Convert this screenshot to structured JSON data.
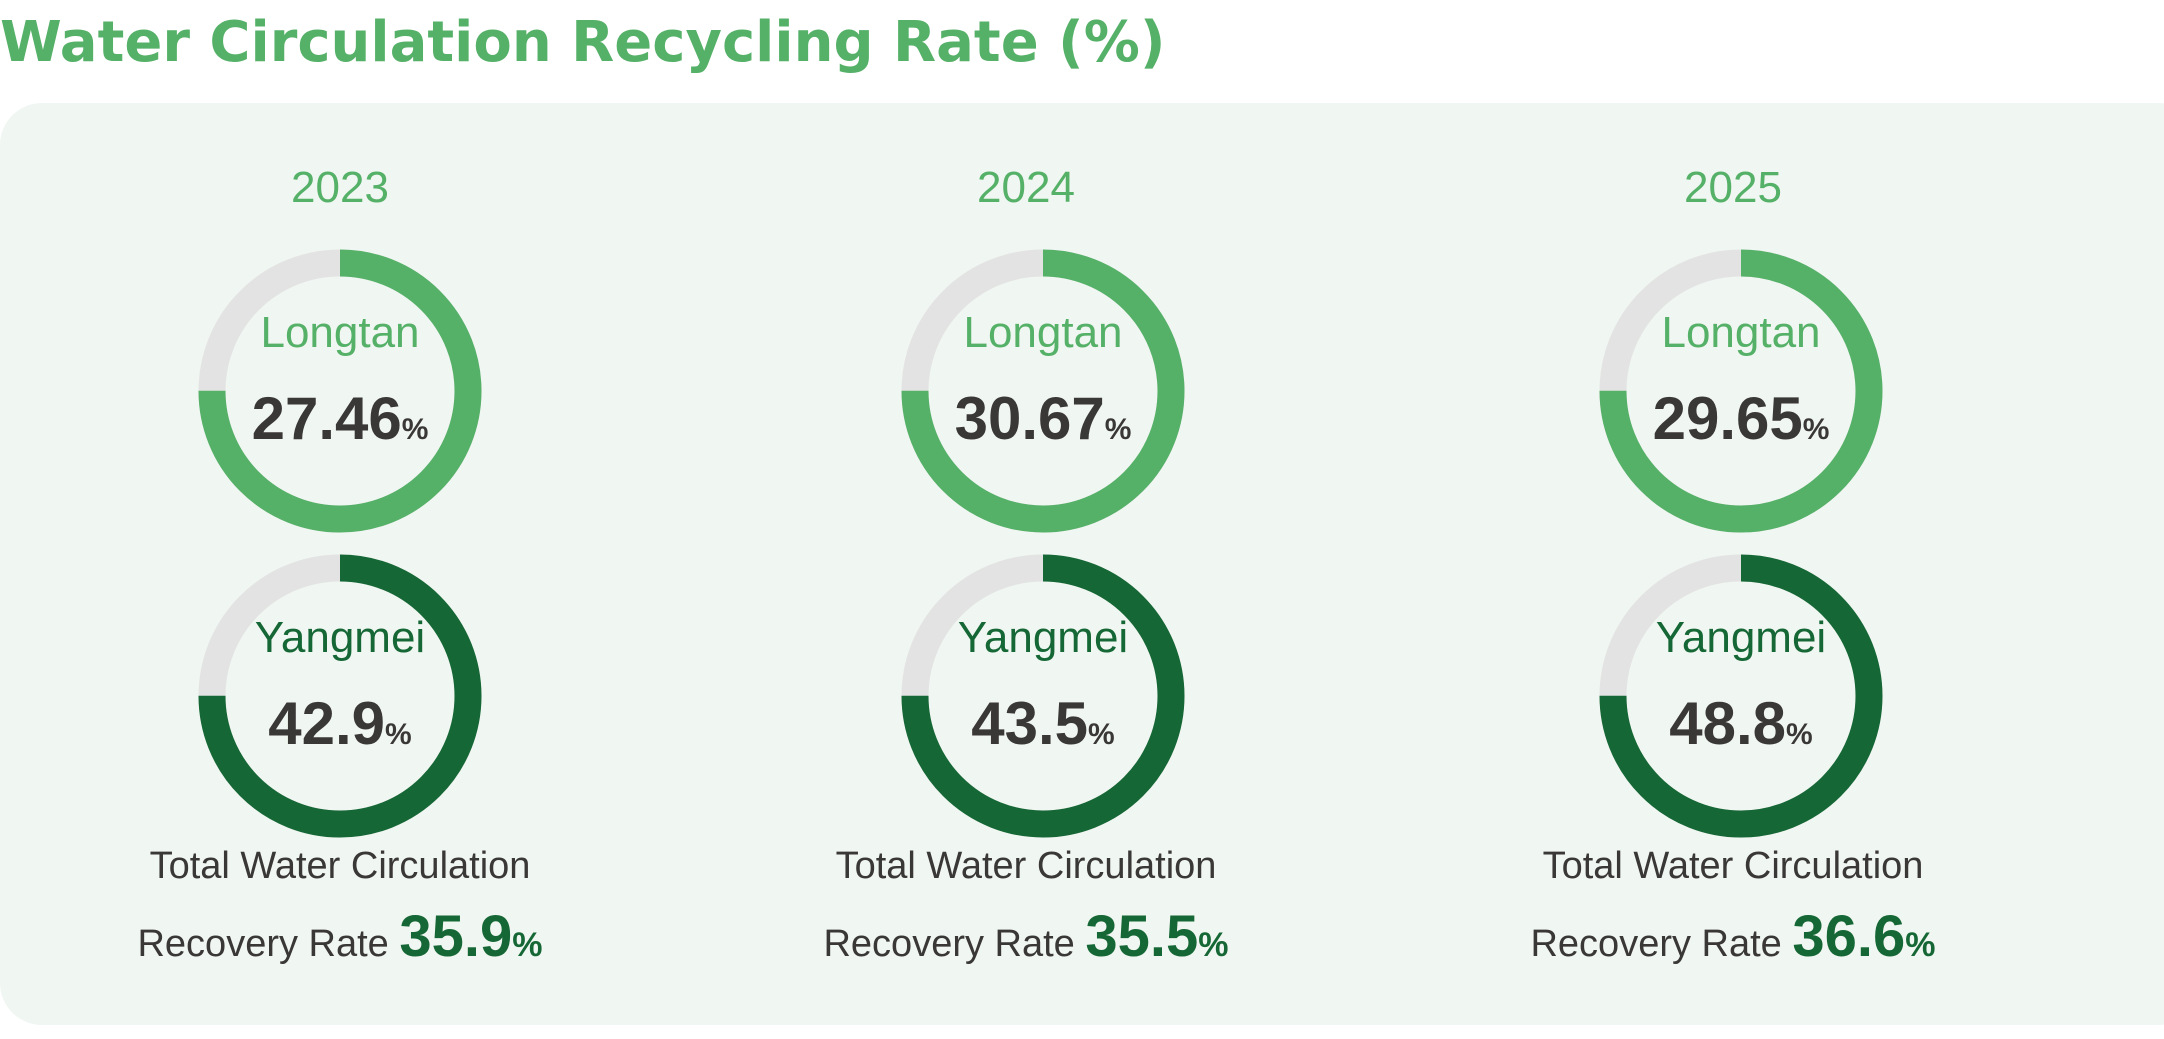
{
  "page": {
    "title": "Water Circulation Recycling Rate (%)"
  },
  "colors": {
    "title": "#55b068",
    "panel_bg": "#f0f6f1",
    "light_green": "#55b068",
    "dark_green": "#156735",
    "track": "#e3e3e3",
    "value_text": "#3a3737"
  },
  "chart_data": {
    "type": "donut",
    "unit": "%",
    "years": [
      {
        "year": "2023",
        "sites": [
          {
            "name": "Longtan",
            "value": "27.46",
            "unit": "%",
            "fill_fraction": 0.75
          },
          {
            "name": "Yangmei",
            "value": "42.9",
            "unit": "%",
            "fill_fraction": 0.75
          }
        ],
        "total": {
          "label_line1": "Total Water Circulation",
          "label_line2": "Recovery Rate",
          "value": "35.9",
          "unit": "%"
        }
      },
      {
        "year": "2024",
        "sites": [
          {
            "name": "Longtan",
            "value": "30.67",
            "unit": "%",
            "fill_fraction": 0.75
          },
          {
            "name": "Yangmei",
            "value": "43.5",
            "unit": "%",
            "fill_fraction": 0.75
          }
        ],
        "total": {
          "label_line1": "Total Water Circulation",
          "label_line2": "Recovery Rate",
          "value": "35.5",
          "unit": "%"
        }
      },
      {
        "year": "2025",
        "sites": [
          {
            "name": "Longtan",
            "value": "29.65",
            "unit": "%",
            "fill_fraction": 0.75
          },
          {
            "name": "Yangmei",
            "value": "48.8",
            "unit": "%",
            "fill_fraction": 0.75
          }
        ],
        "total": {
          "label_line1": "Total Water Circulation",
          "label_line2": "Recovery Rate",
          "value": "36.6",
          "unit": "%"
        }
      }
    ]
  }
}
